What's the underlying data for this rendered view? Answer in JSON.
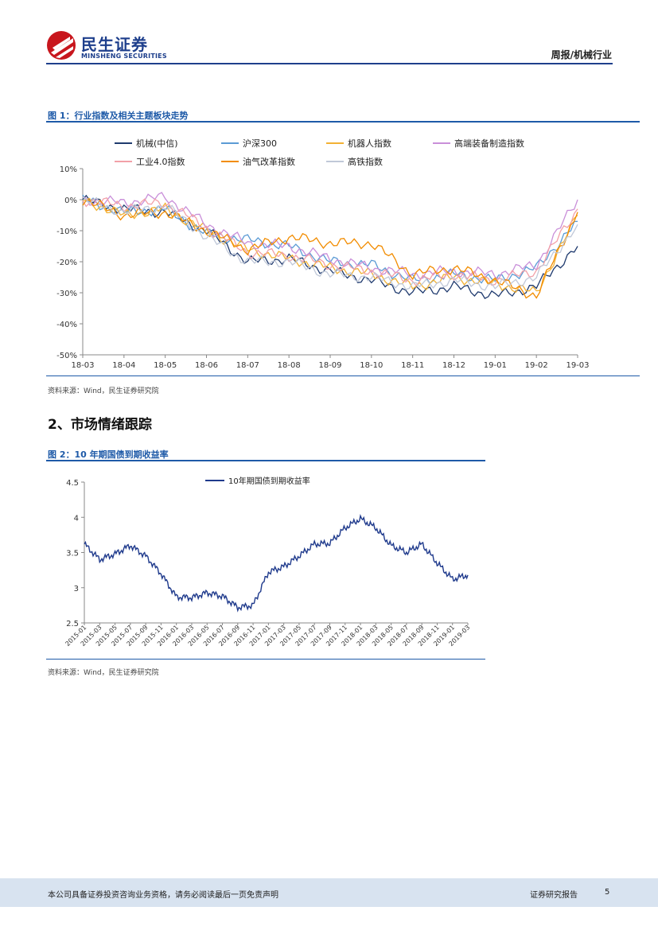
{
  "header": {
    "logo_cn": "民生证券",
    "logo_en": "MINSHENG SECURITIES",
    "report_type": "周报/机械行业"
  },
  "figure1": {
    "title": "图 1：行业指数及相关主题板块走势",
    "source": "资料来源：Wind，民生证券研究院"
  },
  "section2": {
    "title": "2、市场情绪跟踪"
  },
  "figure2": {
    "title": "图 2：10 年期国债到期收益率",
    "source": "资料来源：Wind，民生证券研究院"
  },
  "footer": {
    "disclaimer": "本公司具备证券投资咨询业务资格，请务必阅读最后一页免责声明",
    "label": "证券研究报告",
    "page": "5"
  },
  "chart_data": [
    {
      "type": "line",
      "y_format": "percent",
      "ylim": [
        -50,
        10
      ],
      "y_ticks": [
        10,
        0,
        -10,
        -20,
        -30,
        -40,
        -50
      ],
      "y_tick_labels": [
        "10%",
        "0%",
        "-10%",
        "-20%",
        "-30%",
        "-40%",
        "-50%"
      ],
      "categories": [
        "18-03",
        "18-04",
        "18-05",
        "18-06",
        "18-07",
        "18-08",
        "18-09",
        "18-10",
        "18-11",
        "18-12",
        "19-01",
        "19-02",
        "19-03"
      ],
      "grid": false,
      "legend": "top",
      "series": [
        {
          "name": "机械(中信)",
          "color": "#1f3a6e",
          "values": [
            0,
            -3,
            -4,
            -10,
            -20,
            -19,
            -23,
            -26,
            -30,
            -28,
            -31,
            -28,
            -15
          ]
        },
        {
          "name": "沪深300",
          "color": "#5b9bd5",
          "values": [
            0,
            -4,
            -3,
            -11,
            -13,
            -15,
            -20,
            -21,
            -26,
            -24,
            -26,
            -22,
            -7
          ]
        },
        {
          "name": "机器人指数",
          "color": "#f2b134",
          "values": [
            0,
            -5,
            -3,
            -10,
            -16,
            -19,
            -22,
            -24,
            -28,
            -25,
            -27,
            -30,
            -5
          ]
        },
        {
          "name": "高端装备制造指数",
          "color": "#c98fd9",
          "values": [
            0,
            -1,
            1,
            -8,
            -14,
            -15,
            -19,
            -22,
            -24,
            -23,
            -24,
            -21,
            0
          ]
        },
        {
          "name": "工业4.0指数",
          "color": "#f2a0a8",
          "values": [
            0,
            -2,
            -1,
            -9,
            -17,
            -18,
            -21,
            -23,
            -26,
            -24,
            -26,
            -23,
            -3
          ]
        },
        {
          "name": "油气改革指数",
          "color": "#f28c00",
          "values": [
            0,
            -5,
            -4,
            -10,
            -16,
            -12,
            -14,
            -14,
            -24,
            -22,
            -26,
            -31,
            -4
          ]
        },
        {
          "name": "高铁指数",
          "color": "#c0c8d8",
          "values": [
            0,
            -4,
            -2,
            -12,
            -20,
            -20,
            -24,
            -25,
            -28,
            -26,
            -28,
            -25,
            -8
          ]
        }
      ]
    },
    {
      "type": "line",
      "ylim": [
        2.5,
        4.5
      ],
      "y_ticks": [
        4.5,
        4,
        3.5,
        3,
        2.5
      ],
      "y_tick_labels": [
        "4.5",
        "4",
        "3.5",
        "3",
        "2.5"
      ],
      "categories": [
        "2015-01",
        "2015-03",
        "2015-05",
        "2015-07",
        "2015-09",
        "2015-11",
        "2016-01",
        "2016-03",
        "2016-05",
        "2016-07",
        "2016-09",
        "2016-11",
        "2017-01",
        "2017-03",
        "2017-05",
        "2017-07",
        "2017-09",
        "2017-11",
        "2018-01",
        "2018-03",
        "2018-05",
        "2018-07",
        "2018-09",
        "2018-11",
        "2019-01",
        "2019-03"
      ],
      "grid": false,
      "legend": "top",
      "series": [
        {
          "name": "10年期国债到期收益率",
          "color": "#1f3a8c",
          "values": [
            3.62,
            3.4,
            3.48,
            3.6,
            3.45,
            3.2,
            2.87,
            2.86,
            2.93,
            2.88,
            2.72,
            2.75,
            3.22,
            3.3,
            3.45,
            3.62,
            3.63,
            3.85,
            3.98,
            3.85,
            3.6,
            3.5,
            3.62,
            3.35,
            3.12,
            3.18
          ]
        }
      ]
    }
  ]
}
